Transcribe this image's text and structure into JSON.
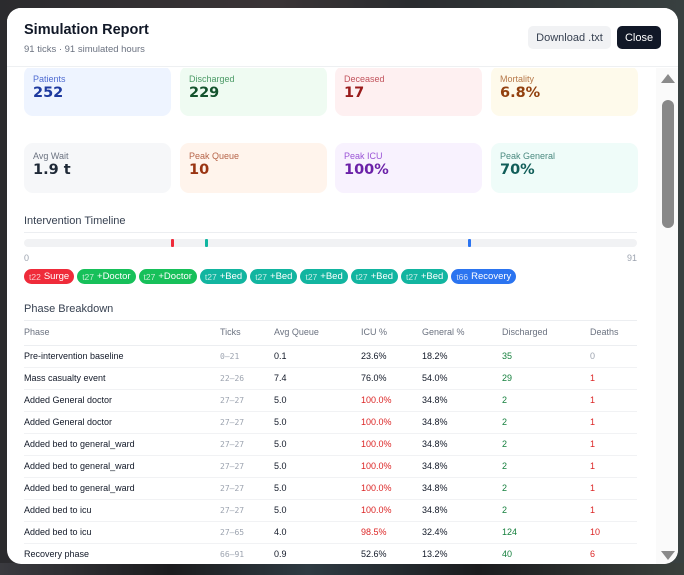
{
  "header": {
    "title": "Simulation Report",
    "subtitle": "91 ticks · 91 simulated hours",
    "download_label": "Download .txt",
    "close_label": "Close"
  },
  "stats": [
    {
      "label": "Patients",
      "value": "252",
      "bg": "#eef4ff",
      "label_color": "#4f6bd1",
      "value_color": "#1e3a9f"
    },
    {
      "label": "Discharged",
      "value": "229",
      "bg": "#effbf2",
      "label_color": "#4b9a66",
      "value_color": "#14532d"
    },
    {
      "label": "Deceased",
      "value": "17",
      "bg": "#fef0f1",
      "label_color": "#c2545d",
      "value_color": "#991b1b"
    },
    {
      "label": "Mortality",
      "value": "6.8%",
      "bg": "#fefaeb",
      "label_color": "#b7794a",
      "value_color": "#92400e"
    },
    {
      "label": "Avg Wait",
      "value": "1.9 t",
      "bg": "#f6f7f9",
      "label_color": "#6b7280",
      "value_color": "#1f2937"
    },
    {
      "label": "Peak Queue",
      "value": "10",
      "bg": "#fff4ec",
      "label_color": "#b7654a",
      "value_color": "#9a3412"
    },
    {
      "label": "Peak ICU",
      "value": "100%",
      "bg": "#f8f2fe",
      "label_color": "#9b55d6",
      "value_color": "#6b21a8"
    },
    {
      "label": "Peak General",
      "value": "70%",
      "bg": "#effcf9",
      "label_color": "#4b8a80",
      "value_color": "#115e59"
    }
  ],
  "timeline": {
    "title": "Intervention Timeline",
    "min_label": "0",
    "max_label": "91",
    "range": [
      0,
      91
    ],
    "markers": [
      {
        "tick": 22,
        "color": "#ef2b3a"
      },
      {
        "tick": 27,
        "color": "#10b5a0"
      },
      {
        "tick": 66,
        "color": "#2b74f0"
      }
    ],
    "chips": [
      {
        "tick": "t22",
        "label": "Surge",
        "color": "#ef2b3a"
      },
      {
        "tick": "t27",
        "label": "+Doctor",
        "color": "#17c05a"
      },
      {
        "tick": "t27",
        "label": "+Doctor",
        "color": "#17c05a"
      },
      {
        "tick": "t27",
        "label": "+Bed",
        "color": "#12b5a0"
      },
      {
        "tick": "t27",
        "label": "+Bed",
        "color": "#12b5a0"
      },
      {
        "tick": "t27",
        "label": "+Bed",
        "color": "#12b5a0"
      },
      {
        "tick": "t27",
        "label": "+Bed",
        "color": "#12b5a0"
      },
      {
        "tick": "t27",
        "label": "+Bed",
        "color": "#12b5a0"
      },
      {
        "tick": "t66",
        "label": "Recovery",
        "color": "#2b74f0"
      }
    ]
  },
  "phase_breakdown": {
    "title": "Phase Breakdown",
    "columns": [
      "Phase",
      "Ticks",
      "Avg Queue",
      "ICU %",
      "General %",
      "Discharged",
      "Deaths"
    ],
    "rows": [
      {
        "phase": "Pre-intervention baseline",
        "ticks": "0–21",
        "avg_queue": "0.1",
        "icu": "23.6%",
        "icu_alert": false,
        "general": "18.2%",
        "discharged": "35",
        "deaths": "0"
      },
      {
        "phase": "Mass casualty event",
        "ticks": "22–26",
        "avg_queue": "7.4",
        "icu": "76.0%",
        "icu_alert": false,
        "general": "54.0%",
        "discharged": "29",
        "deaths": "1"
      },
      {
        "phase": "Added General doctor",
        "ticks": "27–27",
        "avg_queue": "5.0",
        "icu": "100.0%",
        "icu_alert": true,
        "general": "34.8%",
        "discharged": "2",
        "deaths": "1"
      },
      {
        "phase": "Added General doctor",
        "ticks": "27–27",
        "avg_queue": "5.0",
        "icu": "100.0%",
        "icu_alert": true,
        "general": "34.8%",
        "discharged": "2",
        "deaths": "1"
      },
      {
        "phase": "Added bed to general_ward",
        "ticks": "27–27",
        "avg_queue": "5.0",
        "icu": "100.0%",
        "icu_alert": true,
        "general": "34.8%",
        "discharged": "2",
        "deaths": "1"
      },
      {
        "phase": "Added bed to general_ward",
        "ticks": "27–27",
        "avg_queue": "5.0",
        "icu": "100.0%",
        "icu_alert": true,
        "general": "34.8%",
        "discharged": "2",
        "deaths": "1"
      },
      {
        "phase": "Added bed to general_ward",
        "ticks": "27–27",
        "avg_queue": "5.0",
        "icu": "100.0%",
        "icu_alert": true,
        "general": "34.8%",
        "discharged": "2",
        "deaths": "1"
      },
      {
        "phase": "Added bed to icu",
        "ticks": "27–27",
        "avg_queue": "5.0",
        "icu": "100.0%",
        "icu_alert": true,
        "general": "34.8%",
        "discharged": "2",
        "deaths": "1"
      },
      {
        "phase": "Added bed to icu",
        "ticks": "27–65",
        "avg_queue": "4.0",
        "icu": "98.5%",
        "icu_alert": true,
        "general": "32.4%",
        "discharged": "124",
        "deaths": "10"
      },
      {
        "phase": "Recovery phase",
        "ticks": "66–91",
        "avg_queue": "0.9",
        "icu": "52.6%",
        "icu_alert": false,
        "general": "13.2%",
        "discharged": "40",
        "deaths": "6"
      }
    ]
  }
}
